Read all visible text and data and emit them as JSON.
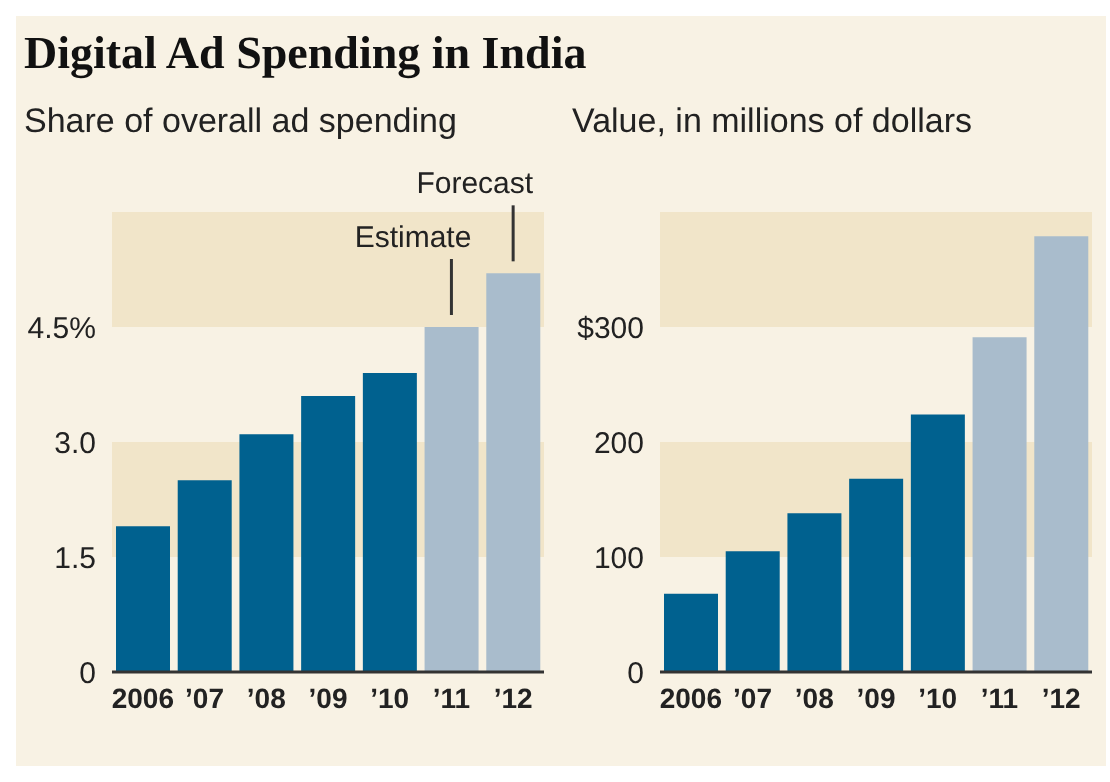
{
  "chart_data": [
    {
      "type": "bar",
      "title": "Digital Ad Spending in India",
      "subtitle": "Share of overall ad spending",
      "categories": [
        "2006",
        "’07",
        "’08",
        "’09",
        "’10",
        "’11",
        "’12"
      ],
      "values": [
        1.9,
        2.5,
        3.1,
        3.6,
        3.9,
        4.5,
        5.2
      ],
      "colors": [
        "#00618f",
        "#00618f",
        "#00618f",
        "#00618f",
        "#00618f",
        "#a9bccc",
        "#a9bccc"
      ],
      "ylim": [
        0,
        6
      ],
      "yticks": [
        0,
        1.5,
        {
          "value": 3,
          "label": "3.0"
        },
        {
          "value": 4.5,
          "label": "4.5%"
        }
      ],
      "grid": false,
      "bands": [
        {
          "axis": "y",
          "from": 1.5,
          "to": 3,
          "color": "#f1e5c9"
        },
        {
          "axis": "y",
          "from": 4.5,
          "to": 6,
          "color": "#f1e5c9"
        }
      ],
      "annotations": [
        {
          "text": "Estimate",
          "x": "’11",
          "y": 4.5
        },
        {
          "text": "Forecast",
          "x": "’12",
          "y": 5.2
        }
      ]
    },
    {
      "type": "bar",
      "subtitle": "Value, in millions of dollars",
      "categories": [
        "2006",
        "’07",
        "’08",
        "’09",
        "’10",
        "’11",
        "’12"
      ],
      "values": [
        68,
        105,
        138,
        168,
        224,
        291,
        379
      ],
      "colors": [
        "#00618f",
        "#00618f",
        "#00618f",
        "#00618f",
        "#00618f",
        "#a9bccc",
        "#a9bccc"
      ],
      "ylim": [
        0,
        400
      ],
      "yticks": [
        0,
        100,
        200,
        {
          "value": 300,
          "label": "$300"
        }
      ],
      "grid": false,
      "bands": [
        {
          "axis": "y",
          "from": 100,
          "to": 200,
          "color": "#f1e5c9"
        },
        {
          "axis": "y",
          "from": 300,
          "to": 400,
          "color": "#f1e5c9"
        }
      ]
    }
  ]
}
